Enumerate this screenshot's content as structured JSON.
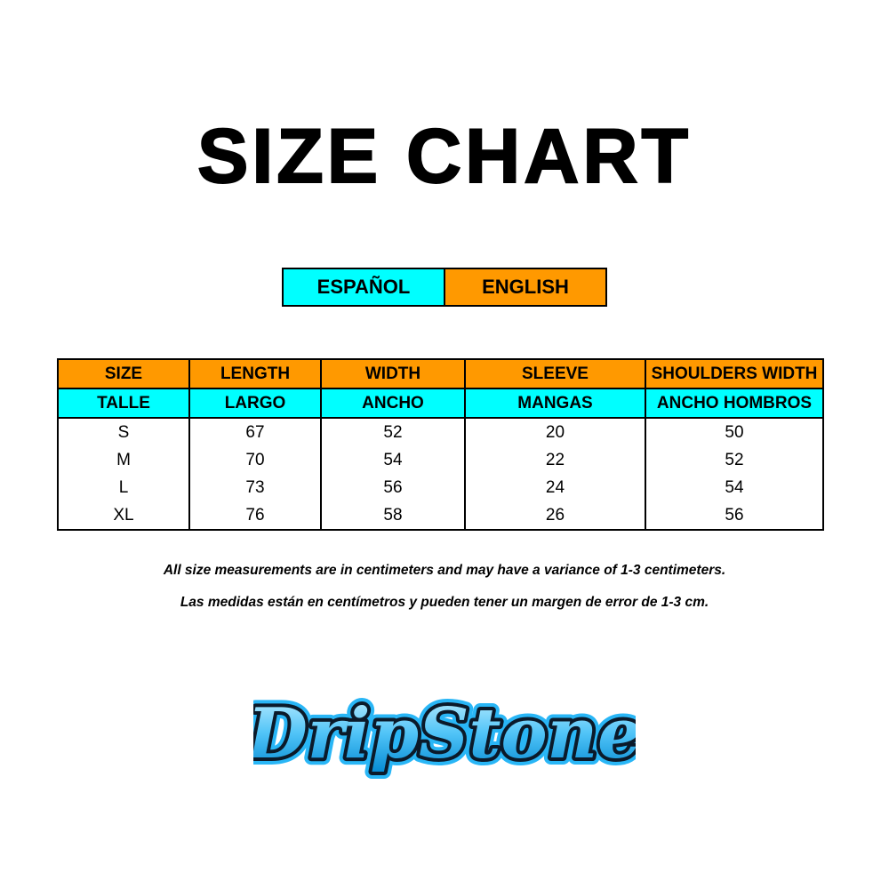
{
  "title": "SIZE CHART",
  "languages": {
    "spanish": "ESPAÑOL",
    "english": "ENGLISH"
  },
  "colors": {
    "orange": "#ff9900",
    "cyan": "#00ffff",
    "logo_blue": "#29b6f6"
  },
  "table": {
    "headers_en": [
      "SIZE",
      "LENGTH",
      "WIDTH",
      "SLEEVE",
      "SHOULDERS WIDTH"
    ],
    "headers_es": [
      "TALLE",
      "LARGO",
      "ANCHO",
      "MANGAS",
      "ANCHO HOMBROS"
    ],
    "rows": [
      [
        "S",
        "67",
        "52",
        "20",
        "50"
      ],
      [
        "M",
        "70",
        "54",
        "22",
        "52"
      ],
      [
        "L",
        "73",
        "56",
        "24",
        "54"
      ],
      [
        "XL",
        "76",
        "58",
        "26",
        "56"
      ]
    ]
  },
  "notes": {
    "english": "All size measurements are in centimeters and may have a variance of 1-3 centimeters.",
    "spanish": "Las medidas están en centímetros y pueden tener un margen de error de 1-3 cm."
  },
  "logo": {
    "text": "DripStone"
  }
}
